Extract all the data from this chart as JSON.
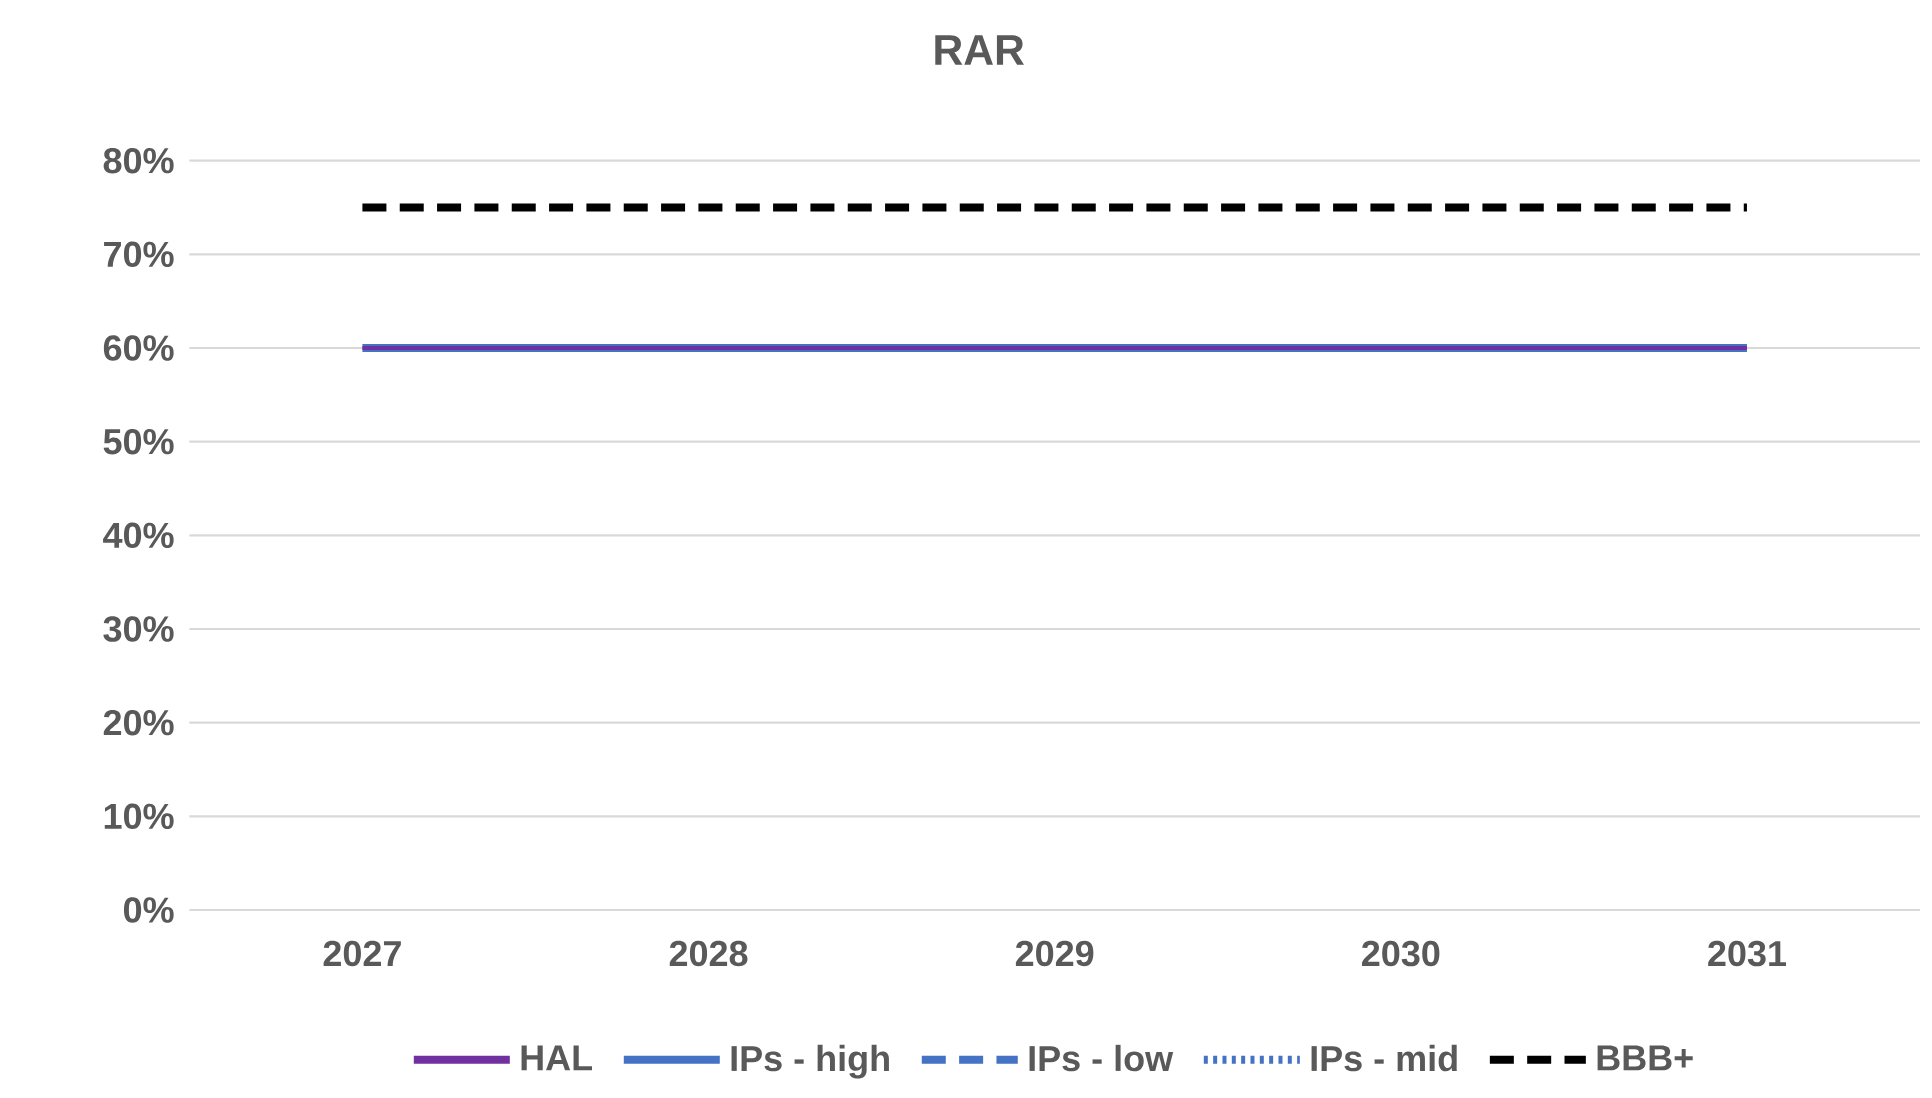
{
  "chart_data": {
    "type": "line",
    "title": "RAR",
    "categories": [
      "2027",
      "2028",
      "2029",
      "2030",
      "2031"
    ],
    "series": [
      {
        "name": "HAL",
        "color": "#7030a0",
        "line_style": "solid",
        "values": [
          60,
          60,
          60,
          60,
          60
        ]
      },
      {
        "name": "IPs - high",
        "color": "#4472c4",
        "line_style": "solid",
        "values": [
          60,
          60,
          60,
          60,
          60
        ]
      },
      {
        "name": "IPs - low",
        "color": "#4472c4",
        "line_style": "dashed",
        "values": [
          null,
          null,
          null,
          null,
          null
        ]
      },
      {
        "name": "IPs - mid",
        "color": "#4472c4",
        "line_style": "dotted",
        "values": [
          null,
          null,
          null,
          null,
          null
        ]
      },
      {
        "name": "BBB+",
        "color": "#000000",
        "line_style": "dashed",
        "values": [
          75,
          75,
          75,
          75,
          75
        ]
      }
    ],
    "ylim": [
      0,
      80
    ],
    "yticks": [
      {
        "value": 0,
        "label": "0%"
      },
      {
        "value": 10,
        "label": "10%"
      },
      {
        "value": 20,
        "label": "20%"
      },
      {
        "value": 30,
        "label": "30%"
      },
      {
        "value": 40,
        "label": "40%"
      },
      {
        "value": 50,
        "label": "50%"
      },
      {
        "value": 60,
        "label": "60%"
      },
      {
        "value": 70,
        "label": "70%"
      },
      {
        "value": 80,
        "label": "80%"
      }
    ],
    "grid": "y",
    "legend": "bottom",
    "marker": "none"
  }
}
